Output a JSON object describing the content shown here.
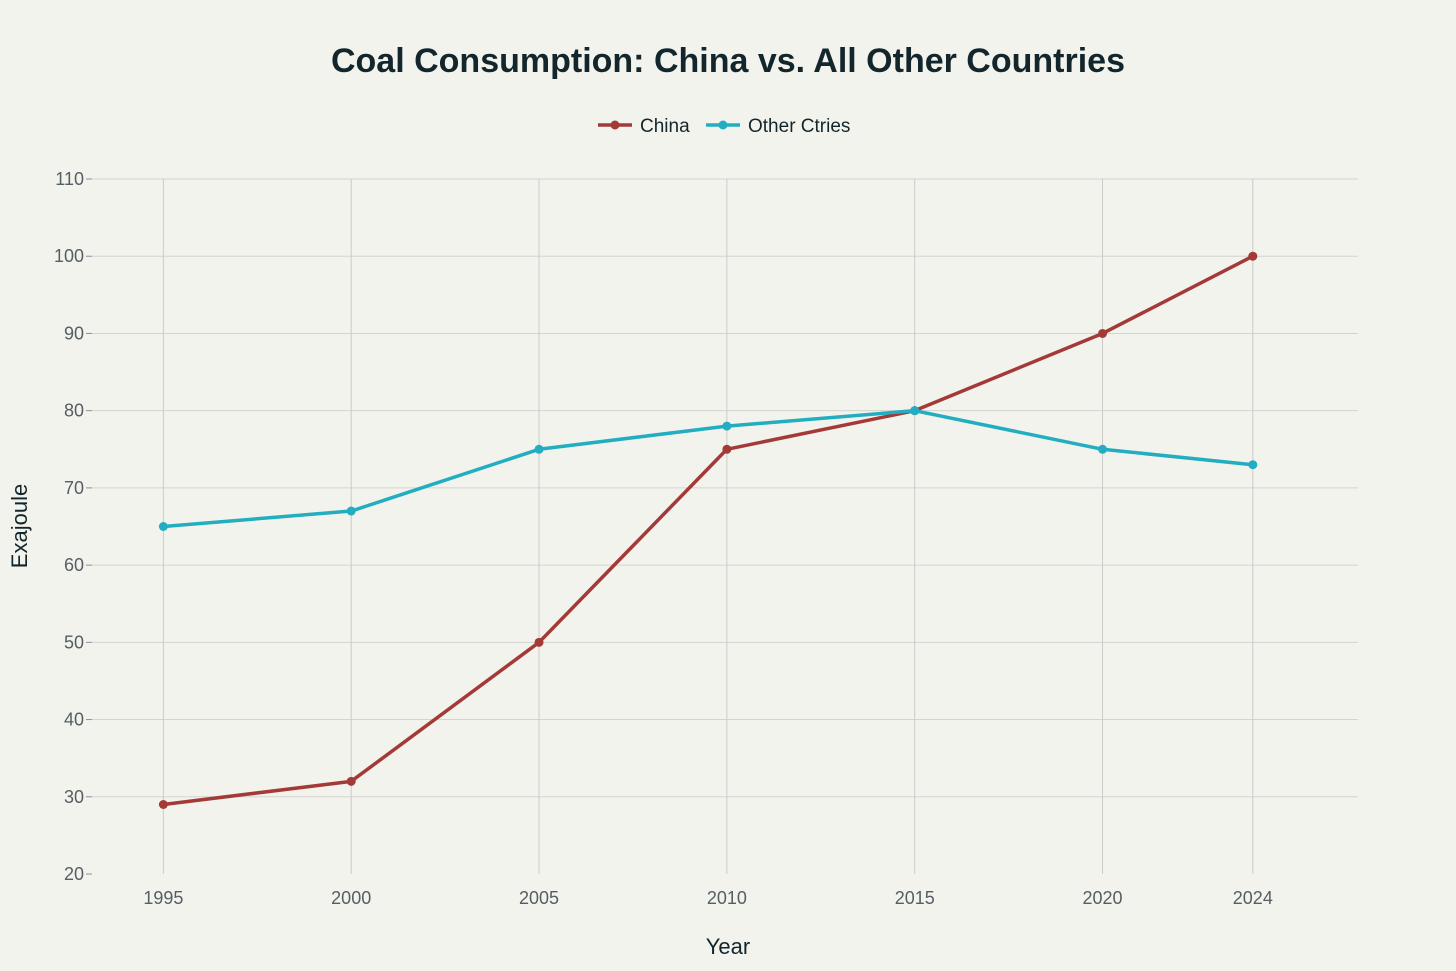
{
  "chart_data": {
    "type": "line",
    "title": "Coal Consumption: China vs. All Other Countries",
    "xlabel": "Year",
    "ylabel": "Exajoule",
    "x": [
      "1995",
      "2000",
      "2005",
      "2010",
      "2015",
      "2020",
      "2024"
    ],
    "x_numeric": [
      1995,
      2000,
      2005,
      2010,
      2015,
      2020,
      2024
    ],
    "xlim": [
      1993.1,
      2026.8
    ],
    "ylim": [
      20,
      110
    ],
    "yticks": [
      20,
      30,
      40,
      50,
      60,
      70,
      80,
      90,
      100,
      110
    ],
    "yticks_label": [
      "20",
      "30",
      "40",
      "50",
      "60",
      "70",
      "80",
      "90",
      "100",
      "110"
    ],
    "grid": true,
    "legend_position": "top-center",
    "series": [
      {
        "name": "China",
        "color": "#a33a38",
        "values": [
          29,
          32,
          50,
          75,
          80,
          90,
          100
        ]
      },
      {
        "name": "Other Ctries",
        "color": "#22aec0",
        "values": [
          65,
          67,
          75,
          78,
          80,
          75,
          73
        ]
      }
    ]
  }
}
